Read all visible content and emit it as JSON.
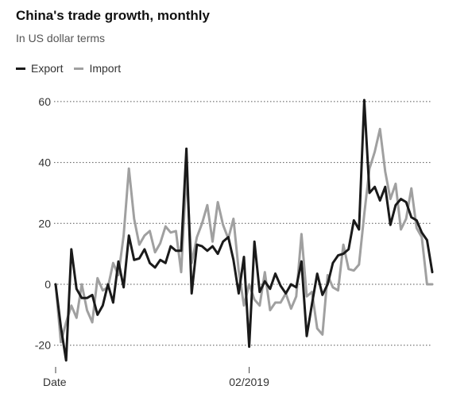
{
  "chart_data": {
    "type": "line",
    "title": "China's trade growth, monthly",
    "subtitle": "In US dollar terms",
    "x_start": "2016-01",
    "x_tick_labels": [
      "Date",
      "02/2019"
    ],
    "y_ticks": [
      60,
      40,
      20,
      0,
      -20
    ],
    "ylim": [
      -28,
      63
    ],
    "grid": true,
    "legend_position": "top-left",
    "colors": {
      "Export": "#1a1a1a",
      "Import": "#a0a0a0"
    },
    "series": [
      {
        "name": "Export",
        "values": [
          0,
          -14,
          -25,
          11.5,
          -1.5,
          -4.5,
          -4.5,
          -3.5,
          -10,
          -7,
          0,
          -6,
          7.5,
          -1,
          16,
          8,
          8.5,
          11.5,
          7,
          5.5,
          8,
          7,
          12.5,
          11,
          11,
          44.5,
          -3,
          13,
          12.5,
          11,
          12.5,
          10,
          14,
          15.5,
          8,
          -3,
          9,
          -20.5,
          14,
          -2.5,
          1,
          -1.5,
          3.5,
          -0.5,
          -3,
          0,
          -1,
          7.5,
          -17,
          -6.5,
          3.5,
          -3.5,
          0,
          7,
          9.5,
          10,
          11.5,
          21,
          18,
          60.5,
          30,
          32,
          27.5,
          32,
          19.5,
          26,
          28,
          27,
          22,
          21,
          17,
          14.5,
          4
        ]
      },
      {
        "name": "Import",
        "values": [
          0,
          -19,
          -12.5,
          -7,
          -11,
          0,
          -8.5,
          -12.5,
          2,
          -2,
          -1,
          7,
          3,
          16,
          38,
          21.5,
          13,
          16,
          17.5,
          10.5,
          13.5,
          19,
          17,
          17.5,
          4,
          36.5,
          7,
          15.5,
          20,
          26,
          14,
          27,
          19.5,
          15,
          21.5,
          4.5,
          -7,
          0,
          -5,
          -7,
          4,
          -8.5,
          -6,
          -6,
          -3,
          -8,
          -4,
          16.5,
          -4,
          -2.5,
          -14.5,
          -16.5,
          3,
          -1,
          -2,
          13,
          5,
          4.5,
          6.5,
          23,
          38,
          43.5,
          51,
          37,
          28,
          33,
          18,
          21.5,
          31.5,
          18.5,
          15.5,
          0,
          0
        ]
      }
    ]
  }
}
